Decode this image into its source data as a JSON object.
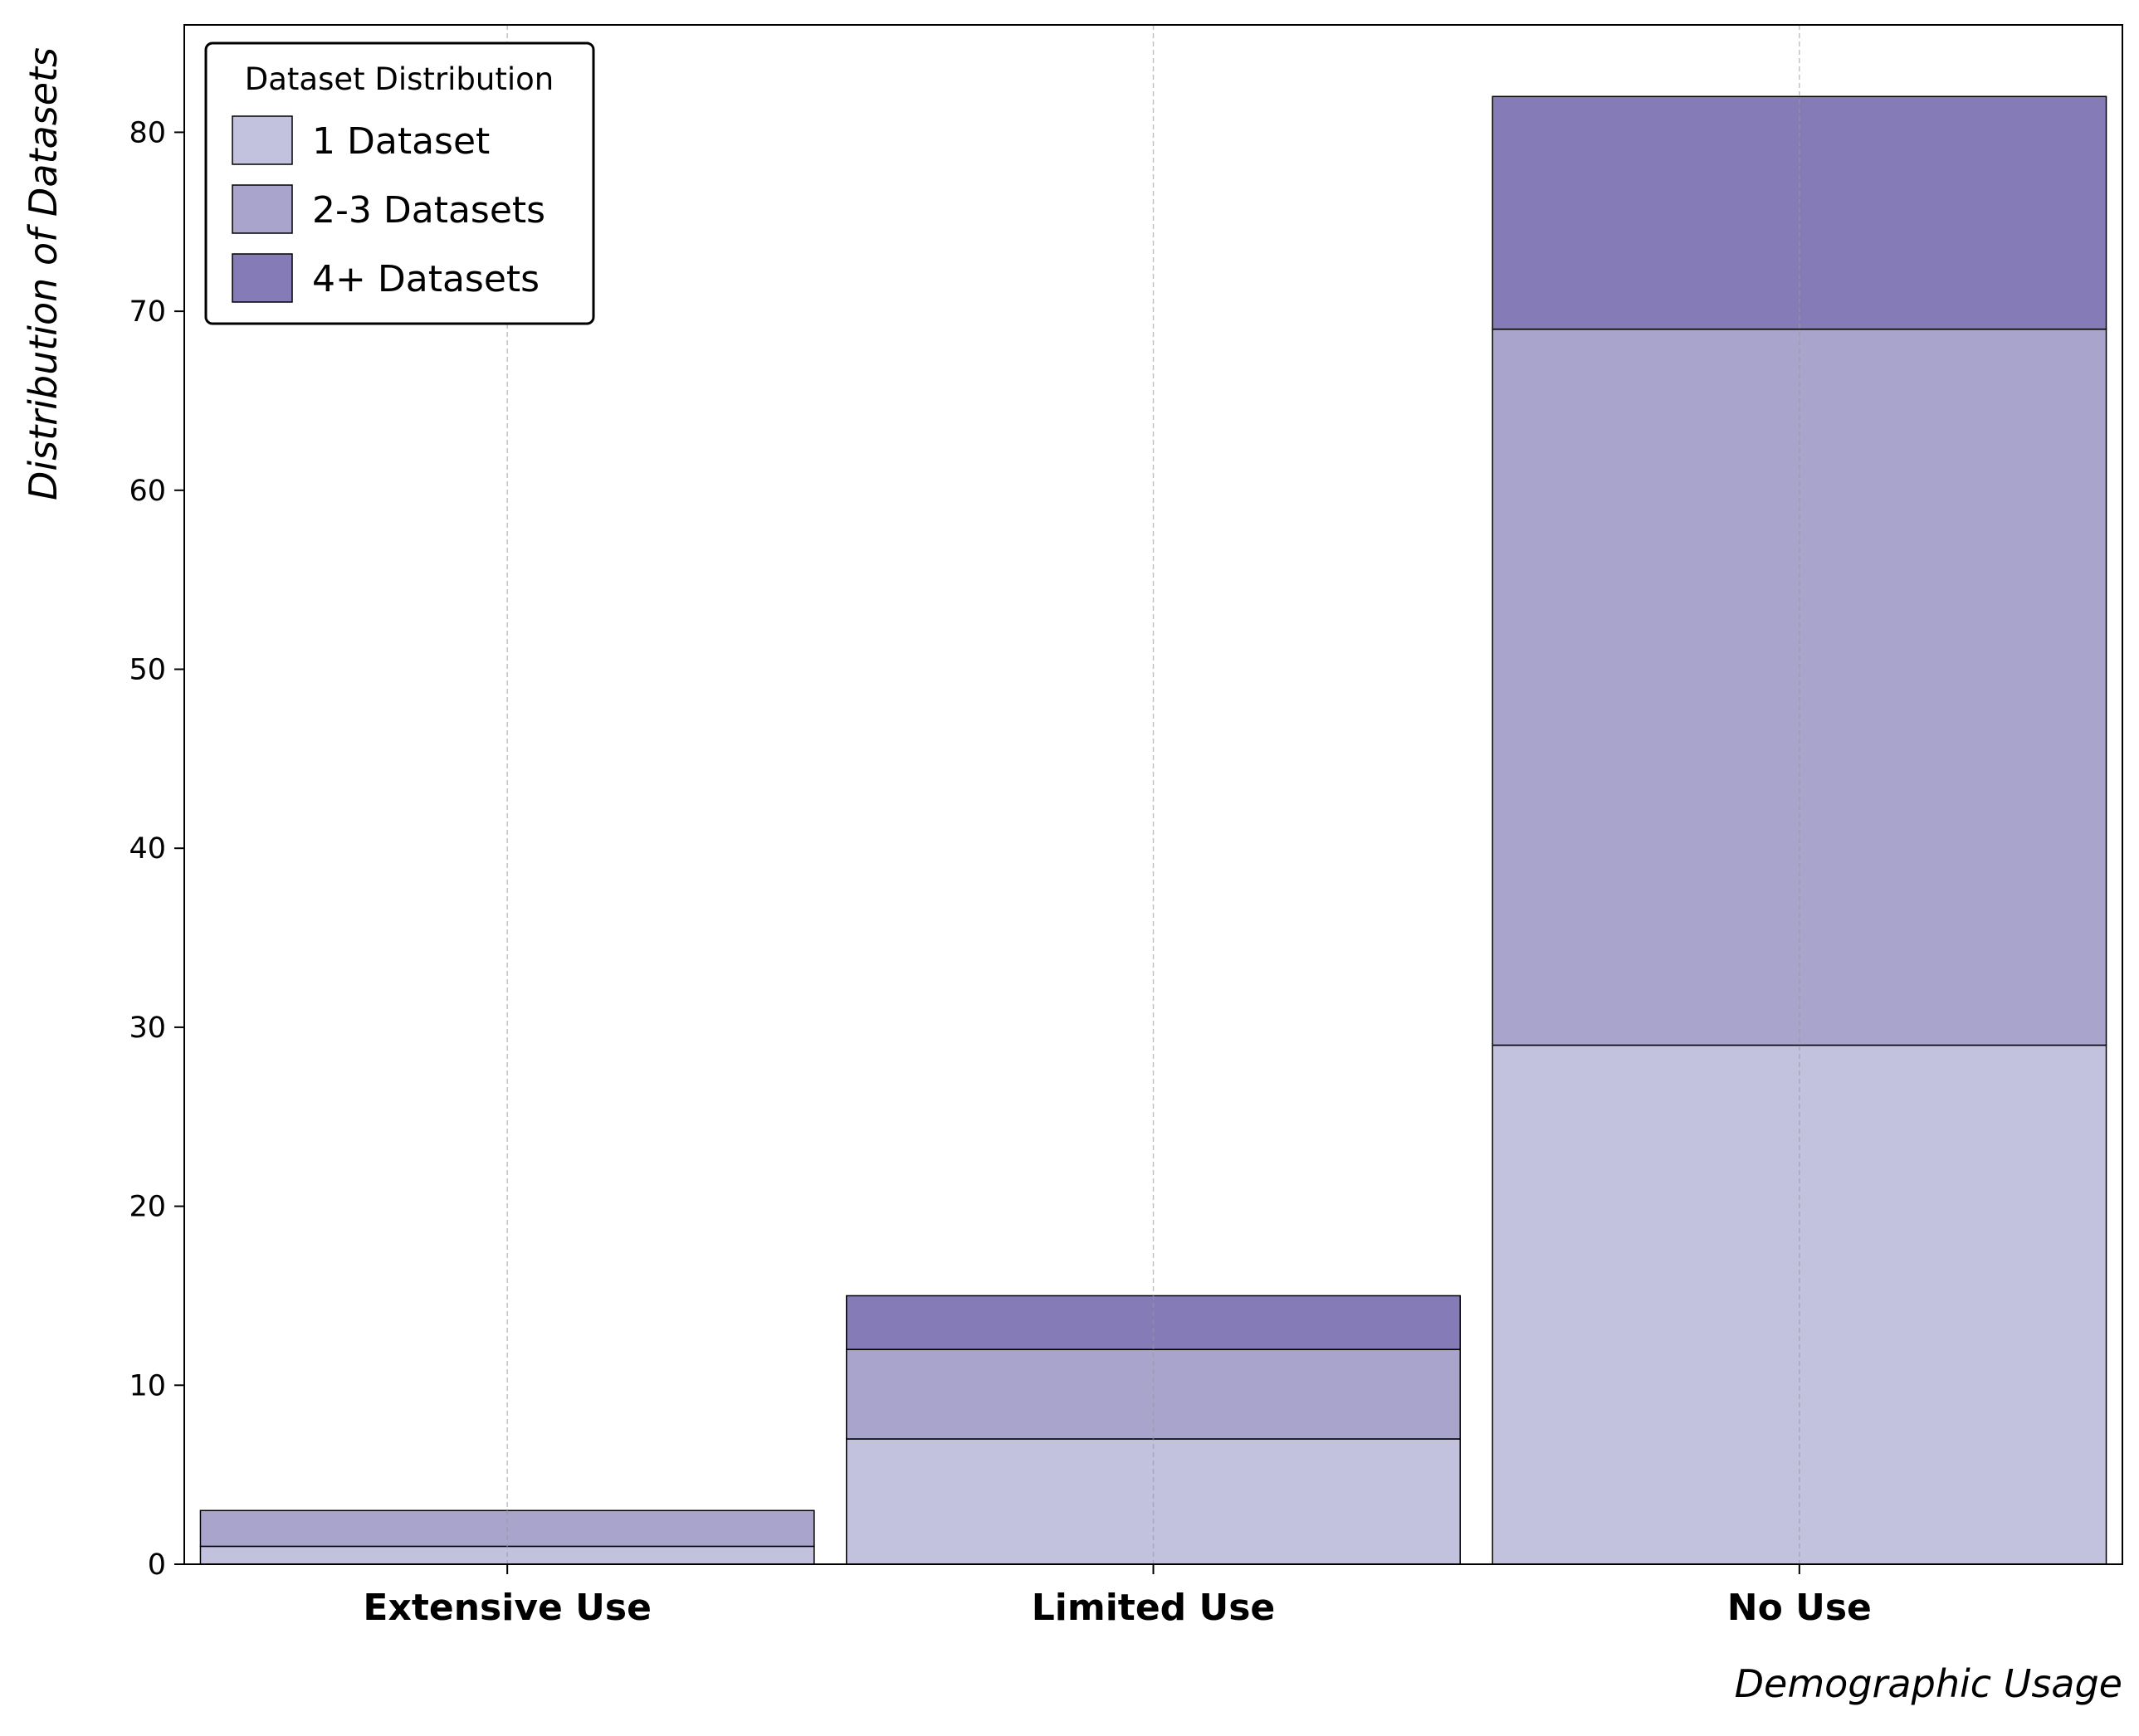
{
  "chart_data": {
    "type": "bar",
    "stacked": true,
    "categories": [
      "Extensive Use",
      "Limited Use",
      "No Use"
    ],
    "series": [
      {
        "name": "1 Dataset",
        "values": [
          1,
          7,
          29
        ],
        "color": "#c2c1de"
      },
      {
        "name": "2-3 Datasets",
        "values": [
          2,
          5,
          40
        ],
        "color": "#a9a4cc"
      },
      {
        "name": "4+ Datasets",
        "values": [
          0,
          3,
          13
        ],
        "color": "#847bb7"
      }
    ],
    "xlabel": "Demographic Usage",
    "ylabel": "Distribution of Datasets",
    "ylim": [
      0,
      86
    ],
    "yticks": [
      0,
      10,
      20,
      30,
      40,
      50,
      60,
      70,
      80
    ],
    "grid": {
      "x": true,
      "y": false
    },
    "legend": {
      "title": "Dataset Distribution",
      "position": "top-left"
    }
  }
}
